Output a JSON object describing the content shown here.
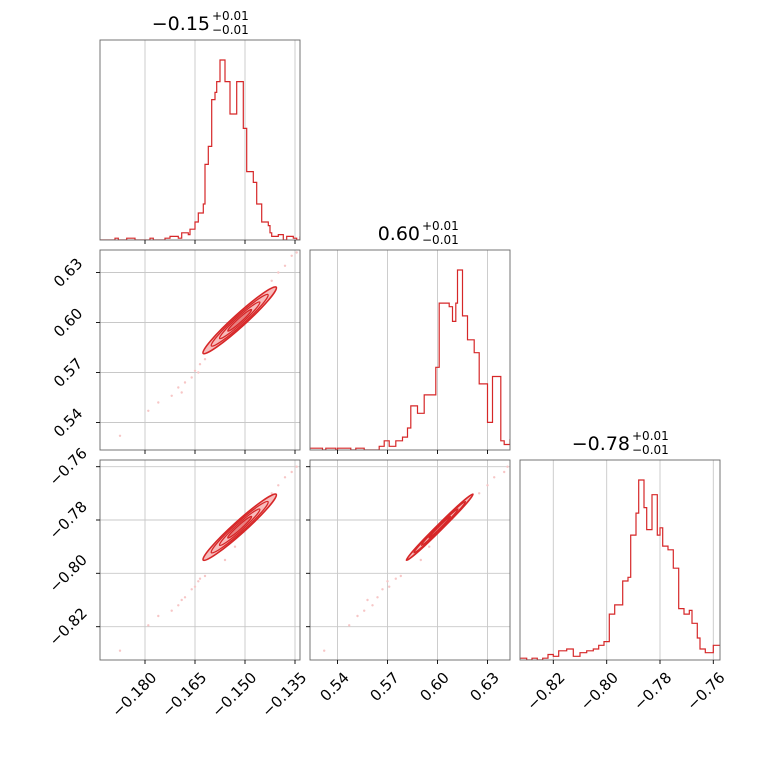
{
  "chart_data": {
    "type": "corner",
    "color": "#d62728",
    "contour_fill": "#f4a6a6",
    "scatter_color": "#f7c6c6",
    "grid": true,
    "parameters": [
      {
        "title_main": "−0.15",
        "title_sup": "+0.01",
        "title_sub": "−0.01",
        "range": [
          -0.1935,
          -0.1335
        ],
        "ticks": [
          -0.18,
          -0.165,
          -0.15,
          -0.135
        ],
        "tick_labels": [
          "−0.180",
          "−0.165",
          "−0.150",
          "−0.135"
        ],
        "hist_bins": [
          -0.1935,
          -0.189,
          -0.188,
          -0.1855,
          -0.183,
          -0.1785,
          -0.1775,
          -0.174,
          -0.1725,
          -0.17,
          -0.169,
          -0.167,
          -0.1665,
          -0.165,
          -0.164,
          -0.1625,
          -0.162,
          -0.161,
          -0.16,
          -0.159,
          -0.1585,
          -0.1575,
          -0.1565,
          -0.156,
          -0.1545,
          -0.1535,
          -0.1525,
          -0.1515,
          -0.1505,
          -0.1495,
          -0.148,
          -0.1475,
          -0.1465,
          -0.145,
          -0.1445,
          -0.143,
          -0.1425,
          -0.142,
          -0.14,
          -0.1385,
          -0.1375,
          -0.1355,
          -0.1345,
          -0.1335
        ],
        "hist_counts": [
          0,
          1,
          0,
          1,
          0,
          1,
          0,
          1,
          2,
          1,
          4,
          3,
          6,
          10,
          15,
          20,
          42,
          52,
          78,
          82,
          88,
          100,
          100,
          88,
          70,
          70,
          88,
          88,
          62,
          38,
          38,
          32,
          20,
          10,
          10,
          8,
          4,
          2,
          3,
          0,
          2,
          1,
          0,
          2
        ]
      },
      {
        "title_main": "0.60",
        "title_sup": "+0.01",
        "title_sub": "−0.01",
        "range": [
          0.5235,
          0.6435
        ],
        "ticks": [
          0.54,
          0.57,
          0.6,
          0.63
        ],
        "tick_labels": [
          "0.54",
          "0.57",
          "0.60",
          "0.63"
        ],
        "hist_bins": [
          0.5235,
          0.531,
          0.533,
          0.539,
          0.54,
          0.548,
          0.551,
          0.556,
          0.565,
          0.568,
          0.571,
          0.575,
          0.579,
          0.582,
          0.584,
          0.588,
          0.592,
          0.596,
          0.599,
          0.601,
          0.605,
          0.607,
          0.609,
          0.611,
          0.612,
          0.615,
          0.618,
          0.622,
          0.625,
          0.63,
          0.633,
          0.638,
          0.64,
          0.6435
        ],
        "hist_counts": [
          1,
          0,
          1,
          0,
          1,
          0,
          1,
          0,
          2,
          5,
          2,
          5,
          7,
          12,
          24,
          20,
          30,
          30,
          45,
          80,
          80,
          78,
          70,
          80,
          98,
          73,
          60,
          53,
          36,
          15,
          40,
          5,
          3,
          6
        ]
      },
      {
        "title_main": "−0.78",
        "title_sup": "+0.01",
        "title_sub": "−0.01",
        "range": [
          -0.8325,
          -0.7575
        ],
        "ticks": [
          -0.82,
          -0.8,
          -0.78,
          -0.76
        ],
        "tick_labels": [
          "−0.82",
          "−0.80",
          "−0.78",
          "−0.76"
        ],
        "hist_bins": [
          -0.8325,
          -0.83,
          -0.828,
          -0.826,
          -0.824,
          -0.822,
          -0.82,
          -0.818,
          -0.815,
          -0.8125,
          -0.81,
          -0.8075,
          -0.805,
          -0.803,
          -0.801,
          -0.799,
          -0.797,
          -0.795,
          -0.794,
          -0.792,
          -0.791,
          -0.789,
          -0.788,
          -0.786,
          -0.785,
          -0.783,
          -0.781,
          -0.78,
          -0.779,
          -0.777,
          -0.775,
          -0.773,
          -0.771,
          -0.769,
          -0.768,
          -0.766,
          -0.765,
          -0.763,
          -0.76,
          -0.7575
        ],
        "hist_counts": [
          1,
          0,
          1,
          0,
          1,
          3,
          2,
          5,
          6,
          2,
          4,
          5,
          6,
          8,
          10,
          25,
          30,
          30,
          43,
          45,
          68,
          80,
          98,
          83,
          71,
          90,
          68,
          72,
          62,
          60,
          50,
          28,
          25,
          27,
          20,
          12,
          6,
          4,
          8,
          8
        ]
      }
    ],
    "pairs": [
      {
        "x": 0,
        "y": 1,
        "center": [
          -0.1516,
          0.6013
        ],
        "spread": [
          0.0055,
          0.01
        ],
        "corr": 0.98
      },
      {
        "x": 0,
        "y": 2,
        "center": [
          -0.1516,
          -0.7827
        ],
        "spread": [
          0.0055,
          0.0062
        ],
        "corr": 0.98
      },
      {
        "x": 1,
        "y": 2,
        "center": [
          0.6013,
          -0.7827
        ],
        "spread": [
          0.01,
          0.0062
        ],
        "corr": 0.995
      }
    ],
    "scatter_points": [
      [
        -0.1875,
        0.532,
        -0.829
      ],
      [
        -0.179,
        0.547,
        -0.8195
      ],
      [
        -0.176,
        0.552,
        -0.816
      ],
      [
        -0.172,
        0.556,
        -0.814
      ],
      [
        -0.17,
        0.561,
        -0.812
      ],
      [
        -0.169,
        0.558,
        -0.81
      ],
      [
        -0.168,
        0.564,
        -0.809
      ],
      [
        -0.166,
        0.567,
        -0.806
      ],
      [
        -0.165,
        0.571,
        -0.805
      ],
      [
        -0.164,
        0.57,
        -0.803
      ],
      [
        -0.1635,
        0.575,
        -0.802
      ],
      [
        -0.162,
        0.578,
        -0.801
      ],
      [
        -0.156,
        0.59,
        -0.795
      ],
      [
        -0.153,
        0.595,
        -0.79
      ],
      [
        -0.147,
        0.612,
        -0.776
      ],
      [
        -0.142,
        0.625,
        -0.77
      ],
      [
        -0.14,
        0.63,
        -0.767
      ],
      [
        -0.138,
        0.634,
        -0.764
      ],
      [
        -0.136,
        0.64,
        -0.762
      ],
      [
        -0.1345,
        0.642,
        -0.76
      ]
    ]
  }
}
